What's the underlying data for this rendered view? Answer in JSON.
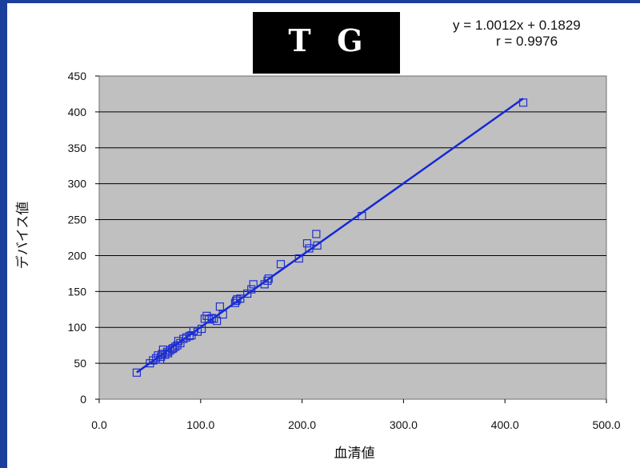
{
  "title": "T  G",
  "equation": "y = 1.0012x + 0.1829",
  "r_label": "r = 0.9976",
  "chart_data": {
    "type": "scatter",
    "title": "T  G",
    "xlabel": "血清値",
    "ylabel": "デバイス値",
    "xlim": [
      0,
      500
    ],
    "ylim": [
      0,
      450
    ],
    "x_ticks": [
      "0.0",
      "100.0",
      "200.0",
      "300.0",
      "400.0",
      "500.0"
    ],
    "y_ticks": [
      "0",
      "50",
      "100",
      "150",
      "200",
      "250",
      "300",
      "350",
      "400",
      "450"
    ],
    "grid": "horizontal",
    "background": "#c0c0c0",
    "marker_color": "#1f2fd0",
    "series": [
      {
        "points": [
          [
            37,
            37
          ],
          [
            50,
            50
          ],
          [
            53,
            54
          ],
          [
            56,
            57
          ],
          [
            58,
            61
          ],
          [
            60,
            55
          ],
          [
            61,
            59
          ],
          [
            62,
            63
          ],
          [
            63,
            69
          ],
          [
            65,
            62
          ],
          [
            67,
            66
          ],
          [
            68,
            64
          ],
          [
            70,
            68
          ],
          [
            72,
            70
          ],
          [
            73,
            71
          ],
          [
            75,
            73
          ],
          [
            77,
            75
          ],
          [
            78,
            81
          ],
          [
            80,
            78
          ],
          [
            83,
            84
          ],
          [
            86,
            86
          ],
          [
            89,
            88
          ],
          [
            91,
            89
          ],
          [
            93,
            95
          ],
          [
            97,
            94
          ],
          [
            101,
            98
          ],
          [
            104,
            112
          ],
          [
            106,
            116
          ],
          [
            108,
            111
          ],
          [
            111,
            113
          ],
          [
            113,
            112
          ],
          [
            116,
            109
          ],
          [
            119,
            129
          ],
          [
            122,
            118
          ],
          [
            134,
            134
          ],
          [
            135,
            137
          ],
          [
            136,
            139
          ],
          [
            139,
            140
          ],
          [
            146,
            147
          ],
          [
            150,
            153
          ],
          [
            152,
            160
          ],
          [
            163,
            160
          ],
          [
            166,
            165
          ],
          [
            167,
            168
          ],
          [
            179,
            188
          ],
          [
            197,
            196
          ],
          [
            205,
            217
          ],
          [
            207,
            210
          ],
          [
            214,
            230
          ],
          [
            215,
            214
          ],
          [
            259,
            255
          ],
          [
            418,
            413
          ]
        ]
      }
    ],
    "fit": {
      "slope": 1.0012,
      "intercept": 0.1829,
      "x_range": [
        37,
        418
      ],
      "color": "#1428d8"
    }
  }
}
